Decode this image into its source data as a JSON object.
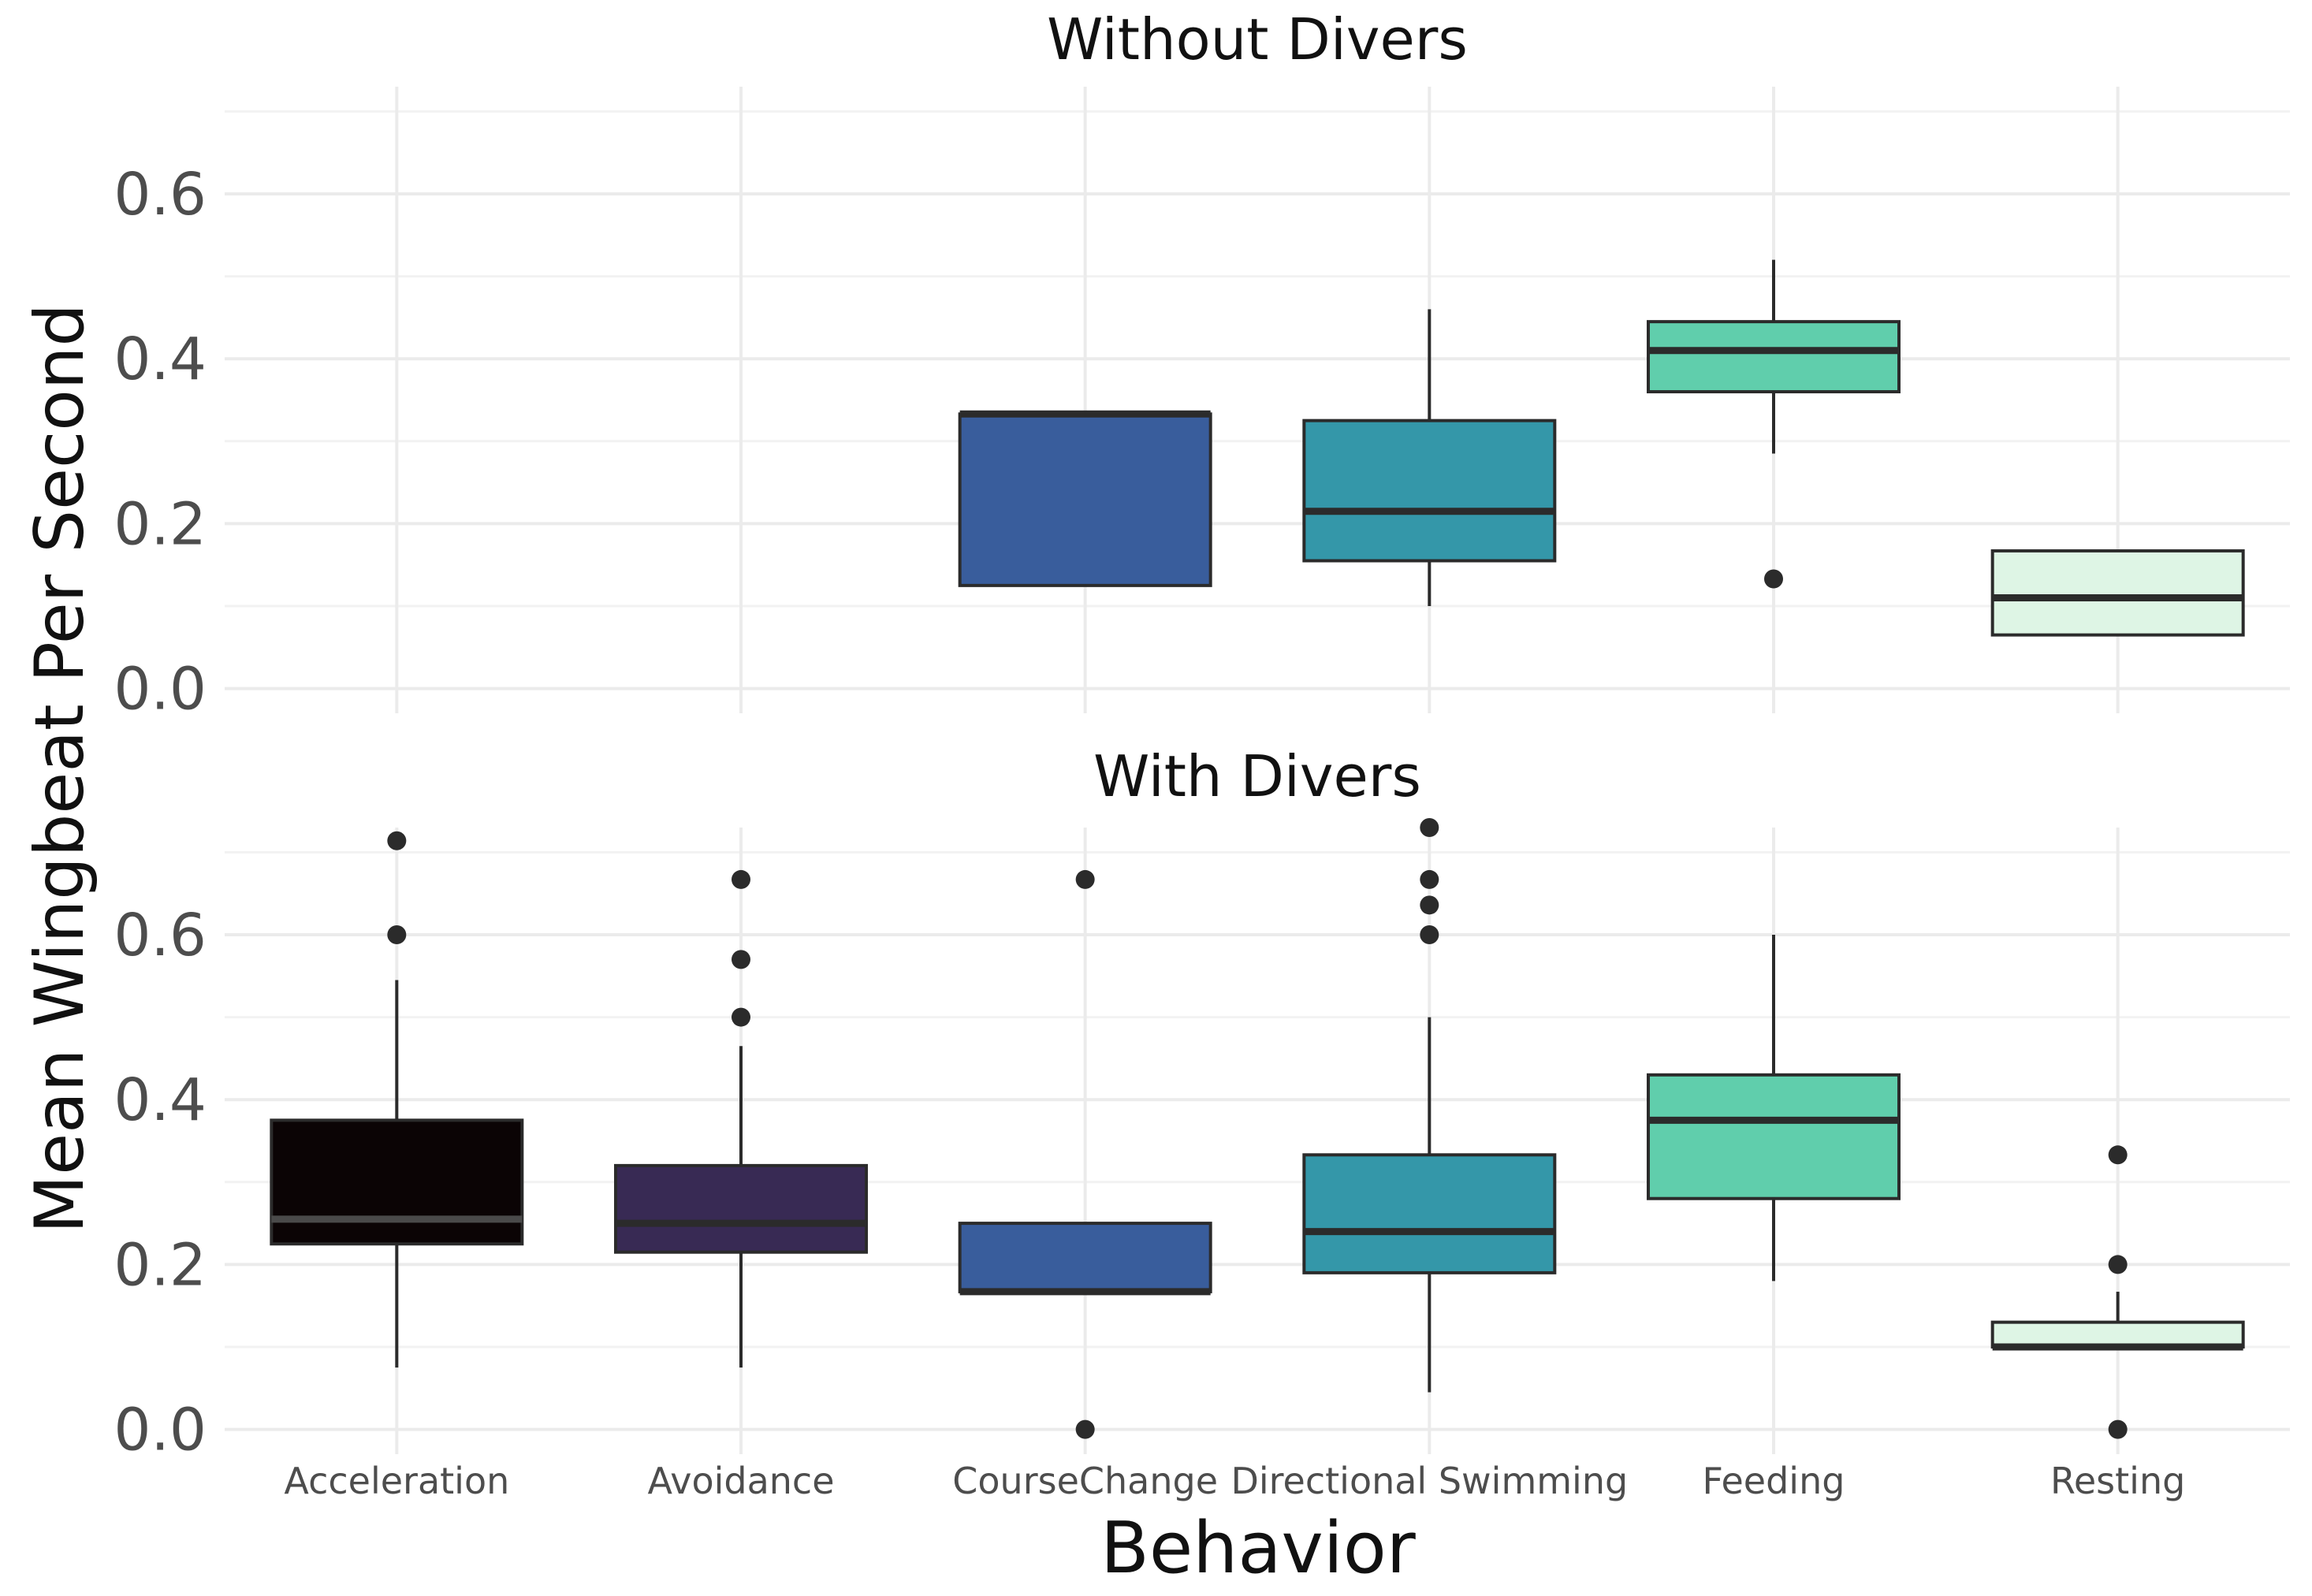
{
  "chart_data": {
    "type": "box",
    "ylabel": "Mean Wingbeat Per Second",
    "xlabel": "Behavior",
    "categories": [
      "Acceleration",
      "Avoidance",
      "CourseChange",
      "Directional Swimming",
      "Feeding",
      "Resting"
    ],
    "colors": [
      "#0b0405",
      "#382a54",
      "#395d9c",
      "#3497a9",
      "#60ceac",
      "#def5e5"
    ],
    "ylim": [
      -0.03,
      0.73
    ],
    "yticks": [
      "0.0",
      "0.2",
      "0.4",
      "0.6"
    ],
    "ytick_values": [
      0,
      0.2,
      0.4,
      0.6
    ],
    "panels": [
      {
        "title": "Without Divers",
        "boxes": [
          null,
          null,
          {
            "whisker_low": 0.125,
            "q1": 0.125,
            "median": 0.333,
            "q3": 0.333,
            "whisker_high": 0.333,
            "outliers": []
          },
          {
            "whisker_low": 0.1,
            "q1": 0.155,
            "median": 0.215,
            "q3": 0.325,
            "whisker_high": 0.46,
            "outliers": []
          },
          {
            "whisker_low": 0.285,
            "q1": 0.36,
            "median": 0.41,
            "q3": 0.445,
            "whisker_high": 0.52,
            "outliers": [
              0.133
            ]
          },
          {
            "whisker_low": 0.065,
            "q1": 0.065,
            "median": 0.11,
            "q3": 0.167,
            "whisker_high": 0.167,
            "outliers": []
          }
        ]
      },
      {
        "title": "With Divers",
        "boxes": [
          {
            "whisker_low": 0.075,
            "q1": 0.225,
            "median": 0.255,
            "q3": 0.375,
            "whisker_high": 0.545,
            "outliers": [
              0.6,
              0.714
            ]
          },
          {
            "whisker_low": 0.075,
            "q1": 0.215,
            "median": 0.25,
            "q3": 0.32,
            "whisker_high": 0.465,
            "outliers": [
              0.5,
              0.57,
              0.667
            ]
          },
          {
            "whisker_low": 0.167,
            "q1": 0.167,
            "median": 0.167,
            "q3": 0.25,
            "whisker_high": 0.25,
            "outliers": [
              0.0,
              0.667
            ]
          },
          {
            "whisker_low": 0.045,
            "q1": 0.19,
            "median": 0.24,
            "q3": 0.333,
            "whisker_high": 0.5,
            "outliers": [
              0.6,
              0.636,
              0.667,
              0.73
            ]
          },
          {
            "whisker_low": 0.18,
            "q1": 0.28,
            "median": 0.375,
            "q3": 0.43,
            "whisker_high": 0.6,
            "outliers": []
          },
          {
            "whisker_low": 0.1,
            "q1": 0.1,
            "median": 0.1,
            "q3": 0.13,
            "whisker_high": 0.167,
            "outliers": [
              0.0,
              0.2,
              0.333
            ]
          }
        ]
      }
    ]
  }
}
